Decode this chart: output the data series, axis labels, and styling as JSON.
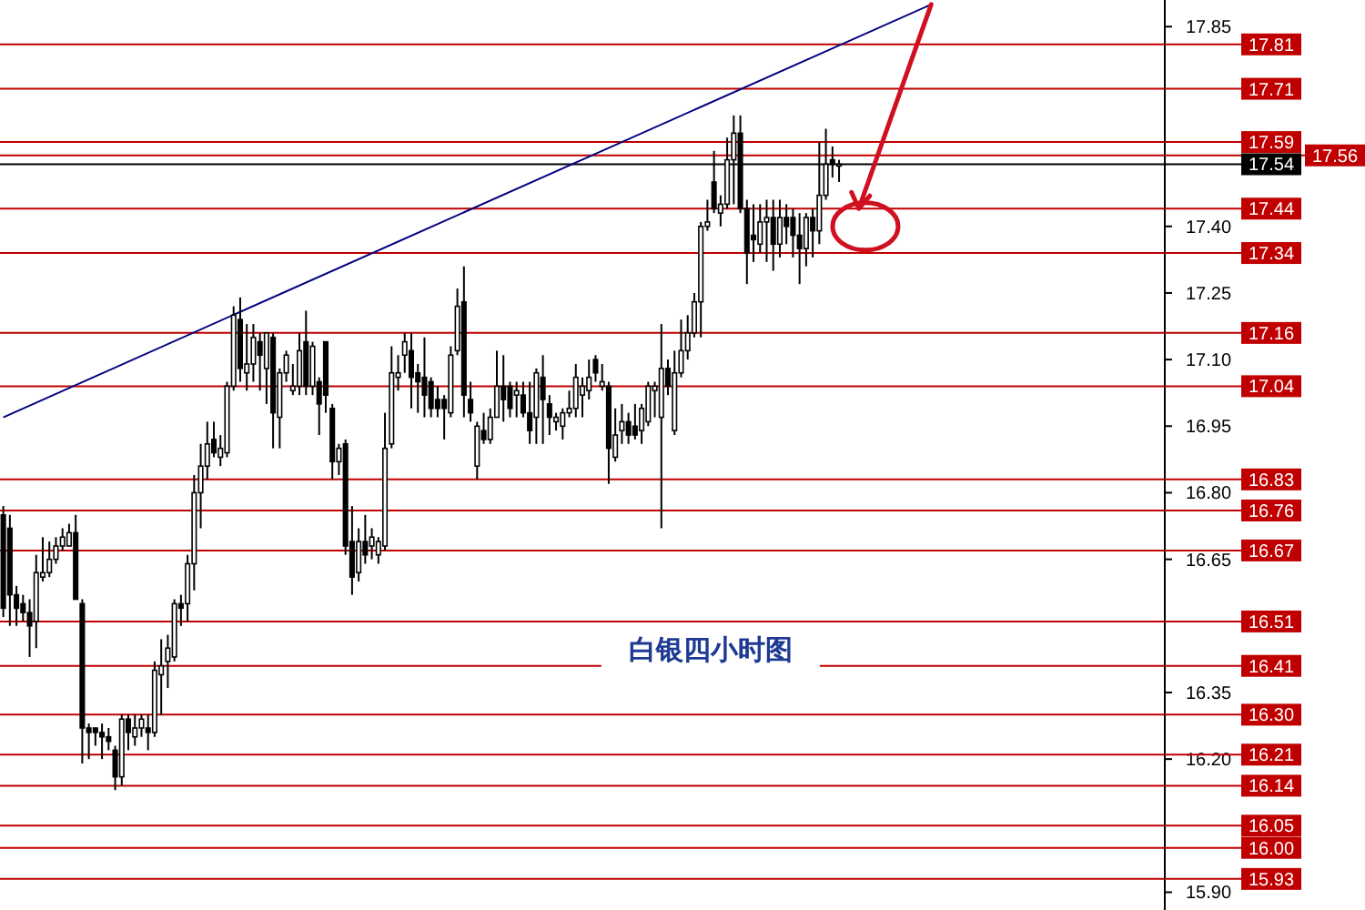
{
  "chart_data": {
    "type": "candlestick",
    "title": "白银四小时图",
    "categories": [
      null,
      null,
      null,
      null,
      null,
      null,
      null,
      null,
      null,
      null,
      null,
      null,
      null,
      null,
      null,
      null,
      null,
      null,
      null,
      null,
      null,
      null,
      null,
      null,
      null,
      null,
      null,
      null,
      null,
      null,
      null,
      null,
      null,
      null,
      null,
      null,
      null,
      null,
      null,
      null,
      null,
      null,
      null,
      null,
      null,
      null,
      null,
      null,
      null,
      null,
      null,
      null,
      null,
      null,
      null,
      null,
      null,
      null,
      null,
      null,
      null,
      null,
      null,
      null,
      null,
      null,
      null,
      null,
      null,
      null,
      null,
      null,
      null,
      null,
      null,
      null,
      null,
      null,
      null,
      null,
      null,
      null,
      null,
      null,
      null,
      null,
      null,
      null,
      null,
      null,
      null,
      null,
      null,
      null,
      null,
      null,
      null,
      null,
      null,
      null,
      null,
      null,
      null,
      null,
      null,
      null,
      null,
      null,
      null,
      null,
      null,
      null,
      null,
      null,
      null,
      null,
      null,
      null,
      null,
      null,
      null,
      null,
      null,
      null,
      null,
      null,
      null,
      null,
      null,
      null,
      null,
      null,
      null,
      null,
      null,
      null,
      null,
      null,
      null,
      null,
      null,
      null,
      null,
      null,
      null,
      null,
      null,
      null,
      null,
      null,
      null,
      null,
      null,
      null,
      null,
      null,
      null,
      null,
      null,
      null,
      null,
      null,
      null,
      null,
      null,
      null,
      null,
      null,
      null,
      null,
      null,
      null,
      null,
      null,
      null,
      null,
      null
    ],
    "ohlc": [
      [
        16.75,
        16.77,
        16.52,
        16.54
      ],
      [
        16.72,
        16.75,
        16.5,
        16.57
      ],
      [
        16.57,
        16.59,
        16.5,
        16.54
      ],
      [
        16.55,
        16.57,
        16.51,
        16.53
      ],
      [
        16.53,
        16.56,
        16.43,
        16.5
      ],
      [
        16.51,
        16.66,
        16.45,
        16.62
      ],
      [
        16.61,
        16.7,
        16.6,
        16.62
      ],
      [
        16.62,
        16.69,
        16.61,
        16.65
      ],
      [
        16.65,
        16.7,
        16.64,
        16.68
      ],
      [
        16.68,
        16.72,
        16.67,
        16.7
      ],
      [
        16.68,
        16.73,
        16.68,
        16.71
      ],
      [
        16.71,
        16.75,
        16.56,
        16.56
      ],
      [
        16.55,
        16.56,
        16.19,
        16.27
      ],
      [
        16.27,
        16.28,
        16.2,
        16.26
      ],
      [
        16.27,
        16.27,
        16.23,
        16.26
      ],
      [
        16.26,
        16.28,
        16.2,
        16.25
      ],
      [
        16.25,
        16.27,
        16.22,
        16.24
      ],
      [
        16.22,
        16.23,
        16.13,
        16.16
      ],
      [
        16.16,
        16.3,
        16.14,
        16.29
      ],
      [
        16.29,
        16.3,
        16.22,
        16.26
      ],
      [
        16.25,
        16.3,
        16.23,
        16.27
      ],
      [
        16.27,
        16.3,
        16.25,
        16.29
      ],
      [
        16.27,
        16.3,
        16.22,
        16.26
      ],
      [
        16.26,
        16.42,
        16.25,
        16.4
      ],
      [
        16.39,
        16.47,
        16.3,
        16.41
      ],
      [
        16.42,
        16.48,
        16.36,
        16.45
      ],
      [
        16.43,
        16.56,
        16.42,
        16.55
      ],
      [
        16.55,
        16.57,
        16.5,
        16.54
      ],
      [
        16.55,
        16.66,
        16.51,
        16.64
      ],
      [
        16.64,
        16.84,
        16.58,
        16.8
      ],
      [
        16.8,
        16.91,
        16.72,
        16.86
      ],
      [
        16.86,
        16.96,
        16.83,
        16.91
      ],
      [
        16.92,
        16.96,
        16.88,
        16.89
      ],
      [
        16.88,
        16.93,
        16.86,
        16.9
      ],
      [
        16.89,
        17.05,
        16.88,
        17.04
      ],
      [
        17.04,
        17.22,
        17.03,
        17.2
      ],
      [
        17.19,
        17.24,
        17.05,
        17.08
      ],
      [
        17.07,
        17.18,
        17.03,
        17.09
      ],
      [
        17.09,
        17.18,
        17.05,
        17.15
      ],
      [
        17.14,
        17.16,
        17.03,
        17.11
      ],
      [
        17.08,
        17.16,
        17.0,
        17.16
      ],
      [
        17.15,
        17.16,
        16.9,
        16.98
      ],
      [
        16.97,
        17.08,
        16.9,
        17.07
      ],
      [
        17.07,
        17.12,
        17.05,
        17.11
      ],
      [
        17.03,
        17.09,
        17.02,
        17.04
      ],
      [
        17.04,
        17.16,
        17.02,
        17.12
      ],
      [
        17.14,
        17.21,
        17.02,
        17.04
      ],
      [
        17.04,
        17.14,
        17.02,
        17.13
      ],
      [
        17.05,
        17.06,
        16.93,
        17.0
      ],
      [
        17.14,
        17.14,
        16.98,
        17.02
      ],
      [
        16.99,
        17.0,
        16.83,
        16.87
      ],
      [
        16.87,
        16.91,
        16.84,
        16.9
      ],
      [
        16.91,
        16.92,
        16.66,
        16.68
      ],
      [
        16.69,
        16.77,
        16.57,
        16.61
      ],
      [
        16.62,
        16.72,
        16.6,
        16.69
      ],
      [
        16.69,
        16.75,
        16.64,
        16.66
      ],
      [
        16.68,
        16.72,
        16.65,
        16.7
      ],
      [
        16.66,
        16.7,
        16.64,
        16.69
      ],
      [
        16.68,
        16.98,
        16.67,
        16.9
      ],
      [
        16.91,
        17.13,
        16.9,
        17.07
      ],
      [
        17.06,
        17.11,
        17.03,
        17.07
      ],
      [
        17.11,
        17.16,
        17.07,
        17.14
      ],
      [
        17.12,
        17.16,
        16.99,
        17.06
      ],
      [
        17.07,
        17.09,
        16.98,
        17.05
      ],
      [
        17.06,
        17.15,
        16.97,
        17.02
      ],
      [
        17.05,
        17.06,
        16.97,
        16.99
      ],
      [
        17.01,
        17.04,
        16.97,
        16.99
      ],
      [
        17.01,
        17.02,
        16.92,
        16.99
      ],
      [
        16.98,
        17.13,
        16.97,
        17.11
      ],
      [
        17.12,
        17.26,
        17.11,
        17.22
      ],
      [
        17.23,
        17.31,
        16.97,
        17.02
      ],
      [
        17.01,
        17.05,
        16.96,
        16.98
      ],
      [
        16.86,
        16.96,
        16.83,
        16.95
      ],
      [
        16.94,
        16.98,
        16.91,
        16.92
      ],
      [
        16.92,
        16.99,
        16.91,
        16.97
      ],
      [
        16.97,
        17.12,
        16.97,
        17.04
      ],
      [
        17.04,
        17.11,
        16.96,
        17.01
      ],
      [
        17.04,
        17.05,
        16.97,
        16.99
      ],
      [
        17.02,
        17.05,
        16.97,
        17.03
      ],
      [
        17.02,
        17.05,
        16.97,
        16.98
      ],
      [
        16.98,
        17.05,
        16.91,
        16.94
      ],
      [
        16.97,
        17.08,
        16.91,
        17.07
      ],
      [
        17.06,
        17.11,
        16.91,
        17.01
      ],
      [
        17.0,
        17.02,
        16.93,
        16.97
      ],
      [
        16.96,
        16.98,
        16.94,
        16.97
      ],
      [
        16.95,
        16.99,
        16.92,
        16.98
      ],
      [
        16.98,
        17.03,
        16.97,
        16.99
      ],
      [
        16.99,
        17.09,
        16.97,
        17.06
      ],
      [
        17.02,
        17.06,
        16.97,
        17.04
      ],
      [
        17.03,
        17.1,
        17.01,
        17.06
      ],
      [
        17.1,
        17.11,
        17.05,
        17.07
      ],
      [
        17.04,
        17.09,
        17.03,
        17.05
      ],
      [
        17.04,
        17.05,
        16.82,
        16.9
      ],
      [
        16.88,
        16.99,
        16.87,
        16.93
      ],
      [
        16.94,
        17.0,
        16.91,
        16.96
      ],
      [
        16.96,
        16.98,
        16.91,
        16.93
      ],
      [
        16.95,
        17.0,
        16.92,
        16.93
      ],
      [
        16.94,
        17.0,
        16.91,
        16.99
      ],
      [
        16.96,
        17.05,
        16.95,
        17.04
      ],
      [
        17.03,
        17.05,
        16.97,
        17.04
      ],
      [
        16.97,
        17.18,
        16.72,
        17.08
      ],
      [
        17.08,
        17.1,
        17.02,
        17.04
      ],
      [
        16.94,
        17.12,
        16.93,
        17.07
      ],
      [
        17.07,
        17.19,
        17.06,
        17.12
      ],
      [
        17.12,
        17.2,
        17.1,
        17.16
      ],
      [
        17.16,
        17.25,
        17.15,
        17.23
      ],
      [
        17.23,
        17.41,
        17.15,
        17.4
      ],
      [
        17.4,
        17.46,
        17.39,
        17.41
      ],
      [
        17.5,
        17.57,
        17.43,
        17.44
      ],
      [
        17.43,
        17.47,
        17.4,
        17.45
      ],
      [
        17.45,
        17.6,
        17.44,
        17.55
      ],
      [
        17.55,
        17.65,
        17.45,
        17.61
      ],
      [
        17.61,
        17.65,
        17.43,
        17.44
      ],
      [
        17.44,
        17.46,
        17.27,
        17.34
      ],
      [
        17.38,
        17.45,
        17.32,
        17.37
      ],
      [
        17.36,
        17.45,
        17.34,
        17.41
      ],
      [
        17.41,
        17.46,
        17.32,
        17.42
      ],
      [
        17.42,
        17.46,
        17.3,
        17.36
      ],
      [
        17.36,
        17.46,
        17.33,
        17.42
      ],
      [
        17.42,
        17.45,
        17.36,
        17.4
      ],
      [
        17.42,
        17.44,
        17.33,
        17.38
      ],
      [
        17.38,
        17.43,
        17.27,
        17.35
      ],
      [
        17.35,
        17.43,
        17.31,
        17.42
      ],
      [
        17.42,
        17.44,
        17.33,
        17.39
      ],
      [
        17.39,
        17.59,
        17.36,
        17.47
      ],
      [
        17.47,
        17.62,
        17.46,
        17.54
      ],
      [
        17.55,
        17.58,
        17.51,
        17.54
      ],
      [
        17.54,
        17.55,
        17.5,
        17.54
      ],
      null,
      null,
      null,
      null,
      null,
      null,
      null,
      null,
      null,
      null,
      null,
      null,
      null,
      null,
      null,
      null,
      null,
      null,
      null,
      null,
      null,
      null,
      null,
      null,
      null,
      null,
      null,
      null,
      null,
      null,
      null,
      null,
      null,
      null,
      null,
      null,
      null,
      null,
      null,
      null,
      null,
      null,
      null,
      null,
      null,
      null,
      null,
      null,
      null
    ],
    "series": [
      {
        "type": "line",
        "color": "#000080",
        "values": [
          16.97,
          null,
          null,
          null,
          null,
          null,
          null,
          null,
          null,
          null,
          null,
          null,
          null,
          null,
          null,
          null,
          null,
          null,
          null,
          null,
          null,
          null,
          null,
          null,
          null,
          null,
          null,
          null,
          null,
          null,
          null,
          null,
          null,
          null,
          null,
          null,
          null,
          null,
          null,
          null,
          null,
          null,
          null,
          null,
          null,
          null,
          null,
          null,
          null,
          null,
          null,
          null,
          null,
          null,
          null,
          null,
          null,
          null,
          null,
          null,
          null,
          null,
          null,
          null,
          null,
          null,
          null,
          null,
          null,
          null,
          null,
          null,
          null,
          null,
          null,
          null,
          null,
          null,
          null,
          null,
          null,
          null,
          null,
          null,
          null,
          null,
          null,
          null,
          null,
          null,
          null,
          null,
          null,
          null,
          null,
          null,
          null,
          null,
          null,
          null,
          null,
          null,
          null,
          null,
          null,
          null,
          null,
          null,
          null,
          null,
          null,
          null,
          null,
          null,
          null,
          null,
          null,
          null,
          null,
          null,
          null,
          null,
          null,
          null,
          null,
          null,
          null,
          null,
          null,
          null,
          null,
          null,
          null,
          null,
          null,
          null,
          null,
          null,
          null,
          null,
          null,
          17.9,
          null,
          null,
          null,
          null,
          null,
          null,
          null,
          null,
          null,
          null,
          null,
          null,
          null,
          null,
          null,
          null,
          null,
          null,
          null,
          null,
          null,
          null,
          null,
          null,
          null,
          null,
          null,
          null,
          null,
          null,
          null,
          null,
          null,
          null,
          null
        ]
      }
    ],
    "ylim": [
      15.86,
      17.91
    ],
    "yticks": [
      17.85,
      {
        "value": 17.4,
        "label": "17.40"
      },
      17.25,
      {
        "value": 17.1,
        "label": "17.10"
      },
      16.95,
      {
        "value": 16.8,
        "label": "16.80"
      },
      16.65,
      16.35,
      {
        "value": 16.2,
        "label": "16.20"
      },
      {
        "value": 15.9,
        "label": "15.90"
      }
    ],
    "tick_labels": "y",
    "ref_lines": [
      {
        "axis": "y",
        "value": 17.81,
        "label": "17.81",
        "color": "#c00000"
      },
      {
        "axis": "y",
        "value": 17.71,
        "label": "17.71",
        "color": "#c00000"
      },
      {
        "axis": "y",
        "value": 17.59,
        "label": "17.59",
        "color": "#c00000"
      },
      {
        "axis": "y",
        "value": 17.56,
        "label": "17.56",
        "color": "#c00000"
      },
      {
        "axis": "y",
        "value": 17.54,
        "label": "17.54",
        "color": "#000000"
      },
      {
        "axis": "y",
        "value": 17.44,
        "label": "17.44",
        "color": "#c00000"
      },
      {
        "axis": "y",
        "value": 17.34,
        "label": "17.34",
        "color": "#c00000"
      },
      {
        "axis": "y",
        "value": 17.16,
        "label": "17.16",
        "color": "#c00000"
      },
      {
        "axis": "y",
        "value": 17.04,
        "label": "17.04",
        "color": "#c00000"
      },
      {
        "axis": "y",
        "value": 16.83,
        "label": "16.83",
        "color": "#c00000"
      },
      {
        "axis": "y",
        "value": 16.76,
        "label": "16.76",
        "color": "#c00000"
      },
      {
        "axis": "y",
        "value": 16.67,
        "label": "16.67",
        "color": "#c00000"
      },
      {
        "axis": "y",
        "value": 16.51,
        "label": "16.51",
        "color": "#c00000"
      },
      {
        "axis": "y",
        "value": 16.41,
        "label": "16.41",
        "color": "#c00000"
      },
      {
        "axis": "y",
        "value": 16.3,
        "label": "16.30",
        "color": "#c00000"
      },
      {
        "axis": "y",
        "value": 16.21,
        "label": "16.21",
        "color": "#c00000"
      },
      {
        "axis": "y",
        "value": 16.14,
        "label": "16.14",
        "color": "#c00000"
      },
      {
        "axis": "y",
        "value": 16.05,
        "label": "16.05",
        "color": "#c00000"
      },
      {
        "axis": "y",
        "value": 16.0,
        "label": "16.00",
        "color": "#c00000"
      },
      {
        "axis": "y",
        "value": 15.93,
        "label": "15.93",
        "color": "#c00000"
      }
    ]
  }
}
